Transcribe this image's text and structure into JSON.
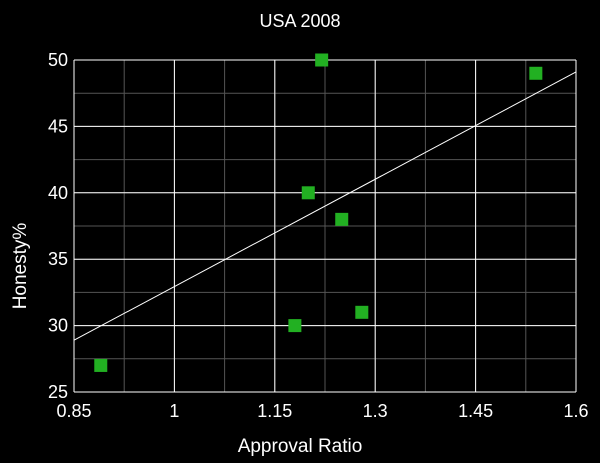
{
  "chart_data": {
    "type": "scatter",
    "title": "USA 2008",
    "xlabel": "Approval Ratio",
    "ylabel": "Honesty%",
    "xlim": [
      0.85,
      1.6
    ],
    "ylim": [
      25,
      50
    ],
    "xticks": [
      0.85,
      1,
      1.15,
      1.3,
      1.45,
      1.6
    ],
    "xtick_labels": [
      "0.85",
      "1",
      "1.15",
      "1.3",
      "1.45",
      "1.6"
    ],
    "yticks": [
      25,
      30,
      35,
      40,
      45,
      50
    ],
    "ytick_labels": [
      "25",
      "30",
      "35",
      "40",
      "45",
      "50"
    ],
    "minor_x_step": 0.075,
    "minor_y_step": 2.5,
    "grid": true,
    "points": [
      {
        "x": 0.89,
        "y": 27
      },
      {
        "x": 1.18,
        "y": 30
      },
      {
        "x": 1.2,
        "y": 40
      },
      {
        "x": 1.22,
        "y": 50
      },
      {
        "x": 1.25,
        "y": 38
      },
      {
        "x": 1.28,
        "y": 31
      },
      {
        "x": 1.54,
        "y": 49
      }
    ],
    "trendline": {
      "x": [
        0.85,
        1.6
      ],
      "y": [
        28.9,
        49.1
      ]
    },
    "colors": {
      "background": "#000000",
      "marker": "#22b022",
      "grid_major": "#ffffff",
      "grid_minor": "#555555",
      "trendline": "#ffffff",
      "text": "#ffffff"
    }
  }
}
